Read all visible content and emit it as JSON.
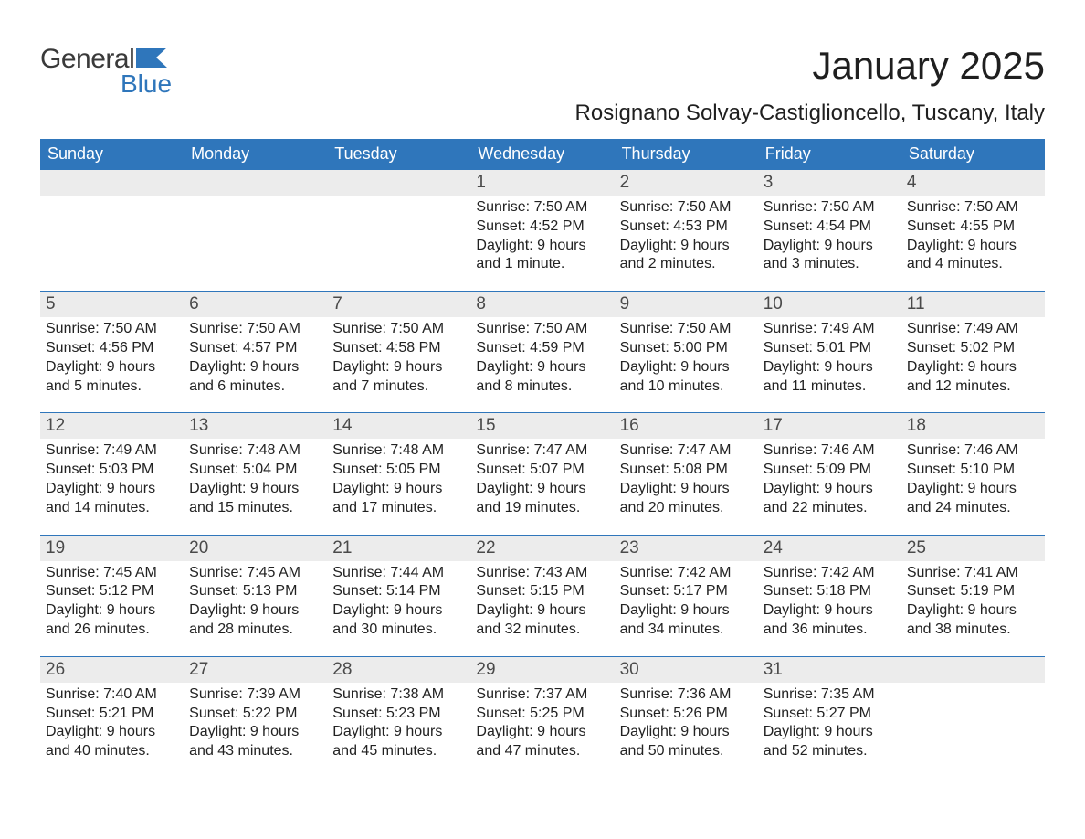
{
  "logo": {
    "word1": "General",
    "word2": "Blue"
  },
  "title": "January 2025",
  "location": "Rosignano Solvay-Castiglioncello, Tuscany, Italy",
  "colors": {
    "header_bg": "#2f76bb",
    "header_text": "#ffffff",
    "daynum_bg": "#ececec",
    "daynum_text": "#4a4a4a",
    "body_text": "#222222",
    "rule": "#2f76bb",
    "logo_gray": "#3a3a3a",
    "logo_blue": "#2f76bb",
    "page_bg": "#ffffff"
  },
  "typography": {
    "title_fontsize": 42,
    "location_fontsize": 24,
    "weekday_fontsize": 18,
    "daynum_fontsize": 19,
    "body_fontsize": 16
  },
  "layout": {
    "columns": 7,
    "rows": 5,
    "leading_blanks": 3,
    "trailing_blanks": 1
  },
  "weekdays": [
    "Sunday",
    "Monday",
    "Tuesday",
    "Wednesday",
    "Thursday",
    "Friday",
    "Saturday"
  ],
  "days": [
    {
      "n": "1",
      "sunrise": "Sunrise: 7:50 AM",
      "sunset": "Sunset: 4:52 PM",
      "dl1": "Daylight: 9 hours",
      "dl2": "and 1 minute."
    },
    {
      "n": "2",
      "sunrise": "Sunrise: 7:50 AM",
      "sunset": "Sunset: 4:53 PM",
      "dl1": "Daylight: 9 hours",
      "dl2": "and 2 minutes."
    },
    {
      "n": "3",
      "sunrise": "Sunrise: 7:50 AM",
      "sunset": "Sunset: 4:54 PM",
      "dl1": "Daylight: 9 hours",
      "dl2": "and 3 minutes."
    },
    {
      "n": "4",
      "sunrise": "Sunrise: 7:50 AM",
      "sunset": "Sunset: 4:55 PM",
      "dl1": "Daylight: 9 hours",
      "dl2": "and 4 minutes."
    },
    {
      "n": "5",
      "sunrise": "Sunrise: 7:50 AM",
      "sunset": "Sunset: 4:56 PM",
      "dl1": "Daylight: 9 hours",
      "dl2": "and 5 minutes."
    },
    {
      "n": "6",
      "sunrise": "Sunrise: 7:50 AM",
      "sunset": "Sunset: 4:57 PM",
      "dl1": "Daylight: 9 hours",
      "dl2": "and 6 minutes."
    },
    {
      "n": "7",
      "sunrise": "Sunrise: 7:50 AM",
      "sunset": "Sunset: 4:58 PM",
      "dl1": "Daylight: 9 hours",
      "dl2": "and 7 minutes."
    },
    {
      "n": "8",
      "sunrise": "Sunrise: 7:50 AM",
      "sunset": "Sunset: 4:59 PM",
      "dl1": "Daylight: 9 hours",
      "dl2": "and 8 minutes."
    },
    {
      "n": "9",
      "sunrise": "Sunrise: 7:50 AM",
      "sunset": "Sunset: 5:00 PM",
      "dl1": "Daylight: 9 hours",
      "dl2": "and 10 minutes."
    },
    {
      "n": "10",
      "sunrise": "Sunrise: 7:49 AM",
      "sunset": "Sunset: 5:01 PM",
      "dl1": "Daylight: 9 hours",
      "dl2": "and 11 minutes."
    },
    {
      "n": "11",
      "sunrise": "Sunrise: 7:49 AM",
      "sunset": "Sunset: 5:02 PM",
      "dl1": "Daylight: 9 hours",
      "dl2": "and 12 minutes."
    },
    {
      "n": "12",
      "sunrise": "Sunrise: 7:49 AM",
      "sunset": "Sunset: 5:03 PM",
      "dl1": "Daylight: 9 hours",
      "dl2": "and 14 minutes."
    },
    {
      "n": "13",
      "sunrise": "Sunrise: 7:48 AM",
      "sunset": "Sunset: 5:04 PM",
      "dl1": "Daylight: 9 hours",
      "dl2": "and 15 minutes."
    },
    {
      "n": "14",
      "sunrise": "Sunrise: 7:48 AM",
      "sunset": "Sunset: 5:05 PM",
      "dl1": "Daylight: 9 hours",
      "dl2": "and 17 minutes."
    },
    {
      "n": "15",
      "sunrise": "Sunrise: 7:47 AM",
      "sunset": "Sunset: 5:07 PM",
      "dl1": "Daylight: 9 hours",
      "dl2": "and 19 minutes."
    },
    {
      "n": "16",
      "sunrise": "Sunrise: 7:47 AM",
      "sunset": "Sunset: 5:08 PM",
      "dl1": "Daylight: 9 hours",
      "dl2": "and 20 minutes."
    },
    {
      "n": "17",
      "sunrise": "Sunrise: 7:46 AM",
      "sunset": "Sunset: 5:09 PM",
      "dl1": "Daylight: 9 hours",
      "dl2": "and 22 minutes."
    },
    {
      "n": "18",
      "sunrise": "Sunrise: 7:46 AM",
      "sunset": "Sunset: 5:10 PM",
      "dl1": "Daylight: 9 hours",
      "dl2": "and 24 minutes."
    },
    {
      "n": "19",
      "sunrise": "Sunrise: 7:45 AM",
      "sunset": "Sunset: 5:12 PM",
      "dl1": "Daylight: 9 hours",
      "dl2": "and 26 minutes."
    },
    {
      "n": "20",
      "sunrise": "Sunrise: 7:45 AM",
      "sunset": "Sunset: 5:13 PM",
      "dl1": "Daylight: 9 hours",
      "dl2": "and 28 minutes."
    },
    {
      "n": "21",
      "sunrise": "Sunrise: 7:44 AM",
      "sunset": "Sunset: 5:14 PM",
      "dl1": "Daylight: 9 hours",
      "dl2": "and 30 minutes."
    },
    {
      "n": "22",
      "sunrise": "Sunrise: 7:43 AM",
      "sunset": "Sunset: 5:15 PM",
      "dl1": "Daylight: 9 hours",
      "dl2": "and 32 minutes."
    },
    {
      "n": "23",
      "sunrise": "Sunrise: 7:42 AM",
      "sunset": "Sunset: 5:17 PM",
      "dl1": "Daylight: 9 hours",
      "dl2": "and 34 minutes."
    },
    {
      "n": "24",
      "sunrise": "Sunrise: 7:42 AM",
      "sunset": "Sunset: 5:18 PM",
      "dl1": "Daylight: 9 hours",
      "dl2": "and 36 minutes."
    },
    {
      "n": "25",
      "sunrise": "Sunrise: 7:41 AM",
      "sunset": "Sunset: 5:19 PM",
      "dl1": "Daylight: 9 hours",
      "dl2": "and 38 minutes."
    },
    {
      "n": "26",
      "sunrise": "Sunrise: 7:40 AM",
      "sunset": "Sunset: 5:21 PM",
      "dl1": "Daylight: 9 hours",
      "dl2": "and 40 minutes."
    },
    {
      "n": "27",
      "sunrise": "Sunrise: 7:39 AM",
      "sunset": "Sunset: 5:22 PM",
      "dl1": "Daylight: 9 hours",
      "dl2": "and 43 minutes."
    },
    {
      "n": "28",
      "sunrise": "Sunrise: 7:38 AM",
      "sunset": "Sunset: 5:23 PM",
      "dl1": "Daylight: 9 hours",
      "dl2": "and 45 minutes."
    },
    {
      "n": "29",
      "sunrise": "Sunrise: 7:37 AM",
      "sunset": "Sunset: 5:25 PM",
      "dl1": "Daylight: 9 hours",
      "dl2": "and 47 minutes."
    },
    {
      "n": "30",
      "sunrise": "Sunrise: 7:36 AM",
      "sunset": "Sunset: 5:26 PM",
      "dl1": "Daylight: 9 hours",
      "dl2": "and 50 minutes."
    },
    {
      "n": "31",
      "sunrise": "Sunrise: 7:35 AM",
      "sunset": "Sunset: 5:27 PM",
      "dl1": "Daylight: 9 hours",
      "dl2": "and 52 minutes."
    }
  ]
}
